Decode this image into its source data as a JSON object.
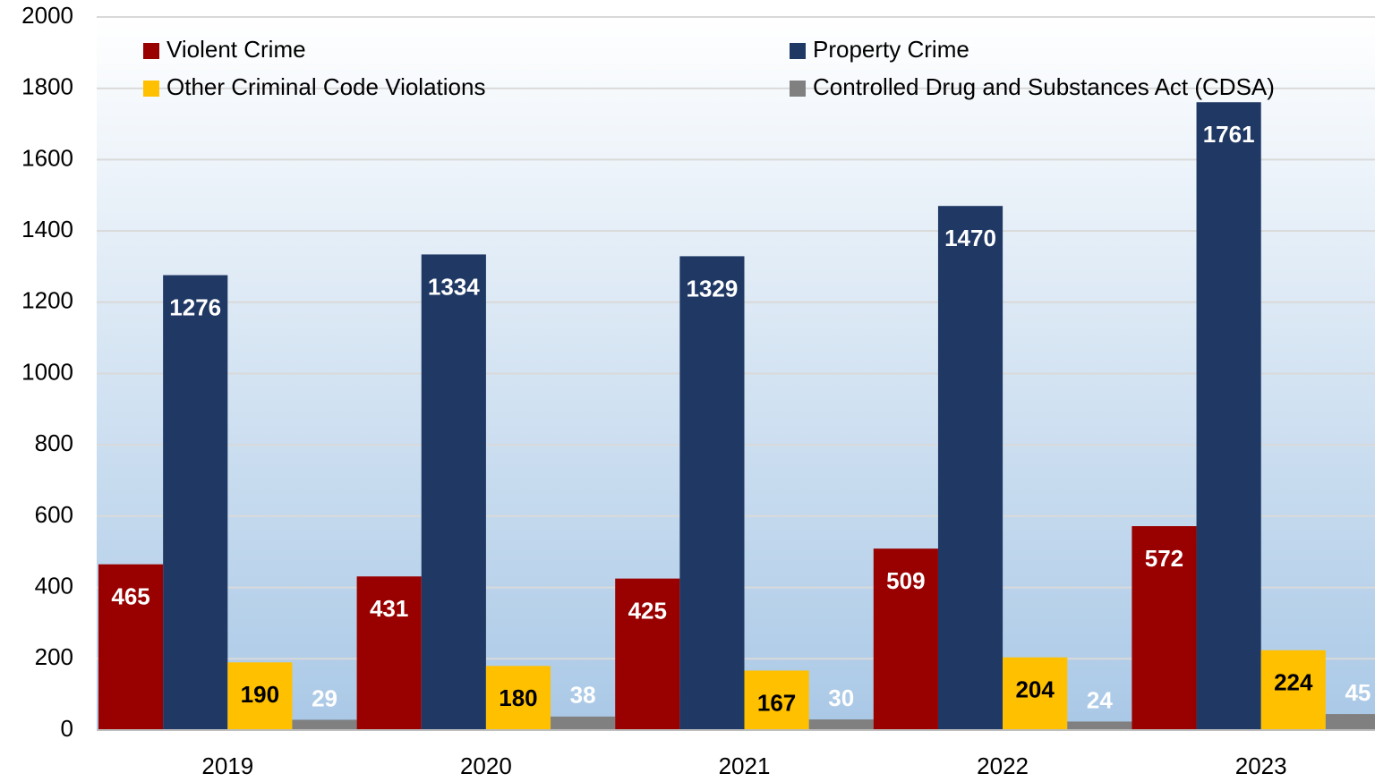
{
  "chart_data": {
    "type": "bar",
    "categories": [
      "2019",
      "2020",
      "2021",
      "2022",
      "2023"
    ],
    "series": [
      {
        "name": "Violent Crime",
        "color": "#990000",
        "values": [
          465,
          431,
          425,
          509,
          572
        ]
      },
      {
        "name": "Property Crime",
        "color": "#1f3864",
        "values": [
          1276,
          1334,
          1329,
          1470,
          1761
        ]
      },
      {
        "name": "Other Criminal Code Violations",
        "color": "#ffc000",
        "values": [
          190,
          180,
          167,
          204,
          224
        ]
      },
      {
        "name": "Controlled Drug and Substances Act (CDSA)",
        "color": "#808080",
        "values": [
          29,
          38,
          30,
          24,
          45
        ]
      }
    ],
    "ylim": [
      0,
      2000
    ],
    "yticks": [
      0,
      200,
      400,
      600,
      800,
      1000,
      1200,
      1400,
      1600,
      1800,
      2000
    ],
    "grid": true
  }
}
